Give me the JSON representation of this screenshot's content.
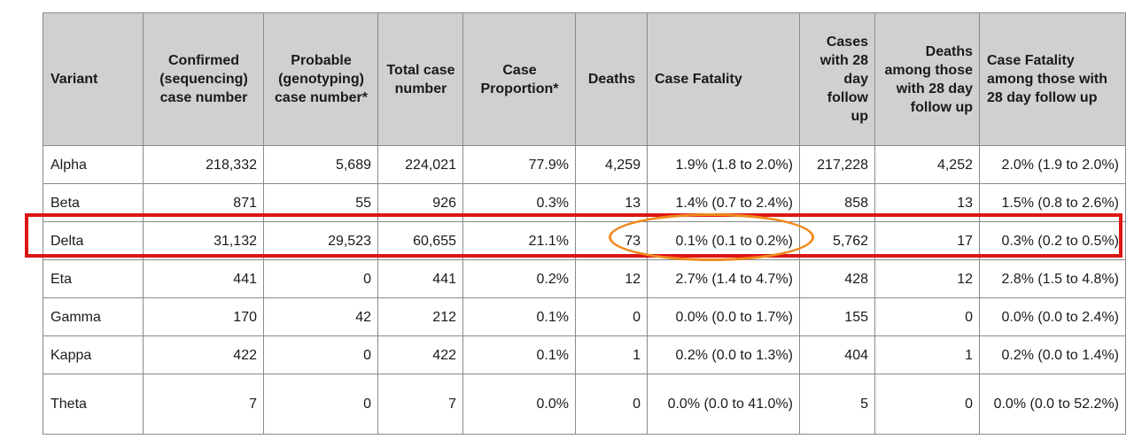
{
  "headers": [
    "Variant",
    "Confirmed (sequencing) case number",
    "Probable (genotyping) case number*",
    "Total case number",
    "Case Proportion*",
    "Deaths",
    "Case Fatality",
    "Cases with 28 day follow up",
    "Deaths among those with 28 day follow up",
    "Case Fatality among those with 28 day follow up"
  ],
  "rows": [
    [
      "Alpha",
      "218,332",
      "5,689",
      "224,021",
      "77.9%",
      "4,259",
      "1.9% (1.8 to 2.0%)",
      "217,228",
      "4,252",
      "2.0% (1.9 to 2.0%)"
    ],
    [
      "Beta",
      "871",
      "55",
      "926",
      "0.3%",
      "13",
      "1.4% (0.7 to 2.4%)",
      "858",
      "13",
      "1.5% (0.8 to 2.6%)"
    ],
    [
      "Delta",
      "31,132",
      "29,523",
      "60,655",
      "21.1%",
      "73",
      "0.1% (0.1 to 0.2%)",
      "5,762",
      "17",
      "0.3% (0.2 to 0.5%)"
    ],
    [
      "Eta",
      "441",
      "0",
      "441",
      "0.2%",
      "12",
      "2.7% (1.4 to 4.7%)",
      "428",
      "12",
      "2.8% (1.5 to 4.8%)"
    ],
    [
      "Gamma",
      "170",
      "42",
      "212",
      "0.1%",
      "0",
      "0.0% (0.0 to 1.7%)",
      "155",
      "0",
      "0.0% (0.0 to 2.4%)"
    ],
    [
      "Kappa",
      "422",
      "0",
      "422",
      "0.1%",
      "1",
      "0.2% (0.0 to 1.3%)",
      "404",
      "1",
      "0.2% (0.0 to 1.4%)"
    ],
    [
      "Theta",
      "7",
      "0",
      "7",
      "0.0%",
      "0",
      "0.0% (0.0 to 41.0%)",
      "5",
      "0",
      "0.0% (0.0 to 52.2%)"
    ]
  ],
  "annotations": {
    "highlight_row": "Delta",
    "highlight_rect_color": "#dd1515",
    "highlight_ellipse_color": "#f08a1c"
  }
}
